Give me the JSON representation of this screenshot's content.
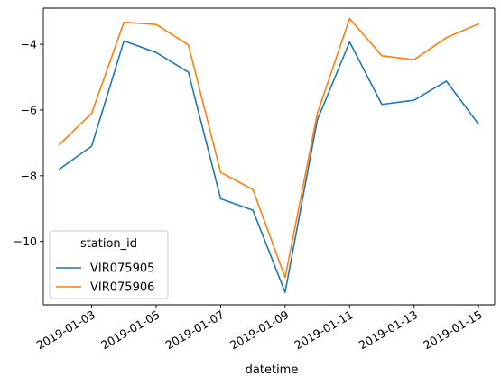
{
  "chart_data": {
    "type": "line",
    "title": "",
    "xlabel": "datetime",
    "ylabel": "",
    "x": [
      "2019-01-02",
      "2019-01-03",
      "2019-01-04",
      "2019-01-05",
      "2019-01-06",
      "2019-01-07",
      "2019-01-08",
      "2019-01-09",
      "2019-01-10",
      "2019-01-11",
      "2019-01-12",
      "2019-01-13",
      "2019-01-14",
      "2019-01-15"
    ],
    "xlim": [
      "2019-01-01T12:00",
      "2019-01-15T12:00"
    ],
    "ylim": [
      -11.93,
      -2.9
    ],
    "x_ticks": [
      {
        "date": "2019-01-03",
        "label": "2019-01-03"
      },
      {
        "date": "2019-01-05",
        "label": "2019-01-05"
      },
      {
        "date": "2019-01-07",
        "label": "2019-01-07"
      },
      {
        "date": "2019-01-09",
        "label": "2019-01-09"
      },
      {
        "date": "2019-01-11",
        "label": "2019-01-11"
      },
      {
        "date": "2019-01-13",
        "label": "2019-01-13"
      },
      {
        "date": "2019-01-15",
        "label": "2019-01-15"
      }
    ],
    "y_ticks": [
      {
        "value": -10,
        "label": "−10"
      },
      {
        "value": -8,
        "label": "−8"
      },
      {
        "value": -6,
        "label": "−6"
      },
      {
        "value": -4,
        "label": "−4"
      }
    ],
    "grid": false,
    "legend": {
      "title": "station_id",
      "position": "lower-left"
    },
    "series": [
      {
        "name": "VIR075905",
        "color": "#1f77b4",
        "values": [
          -7.8,
          -7.1,
          -3.9,
          -4.25,
          -4.85,
          -8.7,
          -9.05,
          -11.55,
          -6.3,
          -3.93,
          -5.83,
          -5.7,
          -5.12,
          -6.43
        ]
      },
      {
        "name": "VIR075906",
        "color": "#ff7f0e",
        "values": [
          -7.05,
          -6.1,
          -3.33,
          -3.4,
          -4.02,
          -7.9,
          -8.42,
          -11.1,
          -6.1,
          -3.22,
          -4.35,
          -4.47,
          -3.8,
          -3.38
        ]
      }
    ]
  }
}
